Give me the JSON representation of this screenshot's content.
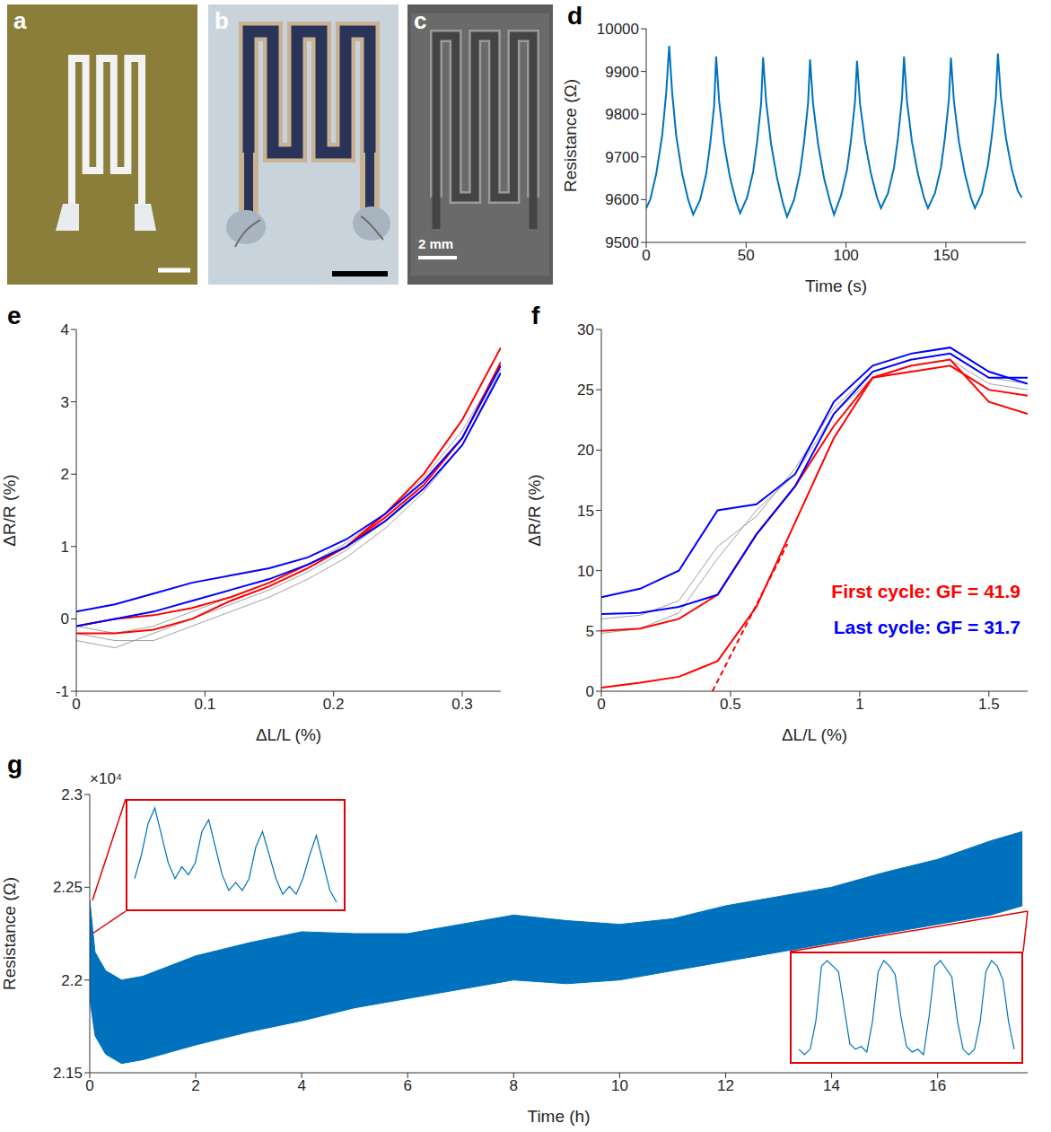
{
  "images": [
    {
      "panel": "a"
    },
    {
      "panel": "b"
    },
    {
      "panel": "c",
      "scale_bar": "2 mm"
    }
  ],
  "chart_data": [
    {
      "panel": "d",
      "type": "line",
      "x_label": "Time (s)",
      "y_label": "Resistance (Ω)",
      "xlim": [
        0,
        190
      ],
      "xticks": [
        0,
        50,
        100,
        150
      ],
      "ylim": [
        9500,
        10000
      ],
      "yticks": [
        9500,
        9600,
        9700,
        9800,
        9900,
        10000
      ],
      "series": [
        {
          "color": "#0072bd",
          "x": [
            0,
            2,
            5,
            8,
            10,
            11.5,
            13,
            15,
            18,
            21,
            23.5,
            27,
            30,
            32,
            34,
            35,
            36.5,
            39,
            42,
            45,
            47,
            50.5,
            53.5,
            55.5,
            57.5,
            58.5,
            60,
            62.5,
            65.5,
            68.5,
            70.5,
            74,
            77,
            79,
            81,
            82,
            83.5,
            86,
            89,
            92,
            94,
            97.5,
            100.5,
            102.5,
            104.5,
            105.5,
            107,
            109.5,
            112.5,
            115.5,
            117.5,
            121,
            124,
            126,
            128,
            129,
            130.5,
            133,
            136,
            139,
            141,
            144.5,
            147.5,
            149.5,
            151.5,
            152.5,
            154,
            156.5,
            159.5,
            162.5,
            164.5,
            168,
            171,
            173,
            175,
            176,
            177.5,
            180,
            183,
            186,
            188
          ],
          "values": [
            9580,
            9600,
            9660,
            9750,
            9850,
            9960,
            9850,
            9750,
            9660,
            9600,
            9565,
            9600,
            9660,
            9730,
            9820,
            9935,
            9830,
            9730,
            9650,
            9595,
            9568,
            9605,
            9665,
            9735,
            9825,
            9933,
            9830,
            9730,
            9650,
            9590,
            9560,
            9600,
            9665,
            9735,
            9825,
            9928,
            9825,
            9730,
            9650,
            9595,
            9565,
            9610,
            9670,
            9740,
            9830,
            9925,
            9825,
            9735,
            9660,
            9605,
            9580,
            9615,
            9675,
            9745,
            9835,
            9935,
            9830,
            9735,
            9660,
            9605,
            9580,
            9615,
            9675,
            9745,
            9835,
            9932,
            9830,
            9735,
            9660,
            9605,
            9580,
            9615,
            9680,
            9750,
            9840,
            9942,
            9840,
            9745,
            9670,
            9620,
            9605
          ]
        }
      ]
    },
    {
      "panel": "e",
      "type": "line",
      "x_label": "ΔL/L (%)",
      "y_label": "ΔR/R (%)",
      "xlim": [
        0,
        0.33
      ],
      "xticks": [
        0,
        0.1,
        0.2,
        0.3
      ],
      "ylim": [
        -1,
        4
      ],
      "yticks": [
        -1,
        0,
        1,
        2,
        3,
        4
      ],
      "series": [
        {
          "color": "#a0a0a0",
          "x": [
            0,
            0.03,
            0.06,
            0.09,
            0.12,
            0.15,
            0.18,
            0.21,
            0.24,
            0.27,
            0.3,
            0.33
          ],
          "values": [
            -0.2,
            -0.3,
            -0.3,
            -0.1,
            0.1,
            0.3,
            0.55,
            0.85,
            1.25,
            1.75,
            2.4,
            3.45
          ]
        },
        {
          "color": "#a0a0a0",
          "x": [
            0,
            0.03,
            0.06,
            0.09,
            0.12,
            0.15,
            0.18,
            0.21,
            0.24,
            0.27,
            0.3,
            0.33
          ],
          "values": [
            -0.3,
            -0.4,
            -0.2,
            0.0,
            0.2,
            0.4,
            0.65,
            0.95,
            1.35,
            1.85,
            2.5,
            3.5
          ]
        },
        {
          "color": "#a0a0a0",
          "x": [
            0,
            0.03,
            0.06,
            0.09,
            0.12,
            0.15,
            0.18,
            0.21,
            0.24,
            0.27,
            0.3,
            0.33
          ],
          "values": [
            -0.1,
            -0.2,
            -0.1,
            0.1,
            0.3,
            0.5,
            0.75,
            1.05,
            1.45,
            1.95,
            2.6,
            3.5
          ]
        },
        {
          "color": "#ff0000",
          "x": [
            0,
            0.03,
            0.06,
            0.09,
            0.12,
            0.15,
            0.18,
            0.21,
            0.24,
            0.27,
            0.3,
            0.33
          ],
          "values": [
            -0.1,
            0.0,
            0.05,
            0.15,
            0.3,
            0.5,
            0.75,
            1.0,
            1.45,
            2.0,
            2.75,
            3.75
          ]
        },
        {
          "color": "#ff0000",
          "x": [
            0,
            0.03,
            0.06,
            0.09,
            0.12,
            0.15,
            0.18,
            0.21,
            0.24,
            0.27,
            0.3,
            0.33
          ],
          "values": [
            -0.2,
            -0.2,
            -0.15,
            0.0,
            0.25,
            0.45,
            0.7,
            1.0,
            1.4,
            1.85,
            2.5,
            3.55
          ]
        },
        {
          "color": "#0000ff",
          "x": [
            0,
            0.03,
            0.06,
            0.09,
            0.12,
            0.15,
            0.18,
            0.21,
            0.24,
            0.27,
            0.3,
            0.33
          ],
          "values": [
            0.1,
            0.2,
            0.35,
            0.5,
            0.6,
            0.7,
            0.85,
            1.1,
            1.45,
            1.9,
            2.5,
            3.5
          ]
        },
        {
          "color": "#0000ff",
          "x": [
            0,
            0.03,
            0.06,
            0.09,
            0.12,
            0.15,
            0.18,
            0.21,
            0.24,
            0.27,
            0.3,
            0.33
          ],
          "values": [
            -0.1,
            0.0,
            0.1,
            0.25,
            0.4,
            0.55,
            0.75,
            1.0,
            1.35,
            1.8,
            2.4,
            3.4
          ]
        }
      ]
    },
    {
      "panel": "f",
      "type": "line",
      "x_label": "ΔL/L (%)",
      "y_label": "ΔR/R (%)",
      "xlim": [
        0,
        1.65
      ],
      "xticks": [
        0,
        0.5,
        1,
        1.5
      ],
      "ylim": [
        0,
        30
      ],
      "yticks": [
        0,
        5,
        10,
        15,
        20,
        25,
        30
      ],
      "annotations": [
        {
          "text": "First cycle: GF = 41.9",
          "color": "#ff0000"
        },
        {
          "text": "Last cycle: GF = 31.7",
          "color": "#0000ff"
        }
      ],
      "series": [
        {
          "color": "#a0a0a0",
          "x": [
            0,
            0.15,
            0.3,
            0.45,
            0.6,
            0.75,
            0.9,
            1.05,
            1.2,
            1.35,
            1.5,
            1.65
          ],
          "values": [
            4.8,
            5.2,
            6.5,
            11,
            15,
            18,
            23,
            26,
            27,
            27.5,
            25.5,
            25
          ]
        },
        {
          "color": "#a0a0a0",
          "x": [
            0,
            0.15,
            0.3,
            0.45,
            0.6,
            0.75,
            0.9,
            1.05,
            1.2,
            1.35,
            1.5,
            1.65
          ],
          "values": [
            6,
            6.3,
            7.5,
            12,
            14.5,
            18.5,
            23.5,
            26.5,
            27.5,
            28,
            26,
            25.5
          ]
        },
        {
          "color": "#ff0000",
          "x": [
            0,
            0.15,
            0.3,
            0.45,
            0.6,
            0.75,
            0.9,
            1.05,
            1.2,
            1.35,
            1.5,
            1.65
          ],
          "values": [
            0.3,
            0.7,
            1.2,
            2.5,
            7,
            14,
            21,
            26,
            26.5,
            27,
            25,
            24.5
          ]
        },
        {
          "color": "#ff0000",
          "x": [
            0,
            0.15,
            0.3,
            0.45,
            0.6,
            0.75,
            0.9,
            1.05,
            1.2,
            1.35,
            1.5,
            1.65
          ],
          "values": [
            5,
            5.2,
            6,
            8,
            13,
            17,
            22,
            26,
            27,
            27.5,
            24,
            23
          ]
        },
        {
          "color": "#0000ff",
          "x": [
            0,
            0.15,
            0.3,
            0.45,
            0.6,
            0.75,
            0.9,
            1.05,
            1.2,
            1.35,
            1.5,
            1.65
          ],
          "values": [
            7.8,
            8.5,
            10,
            15,
            15.5,
            18,
            24,
            27,
            28,
            28.5,
            26.5,
            25.5
          ]
        },
        {
          "color": "#0000ff",
          "x": [
            0,
            0.15,
            0.3,
            0.45,
            0.6,
            0.75,
            0.9,
            1.05,
            1.2,
            1.35,
            1.5,
            1.65
          ],
          "values": [
            6.4,
            6.5,
            7,
            8,
            13,
            17,
            23,
            26.5,
            27.5,
            28,
            26,
            26
          ]
        },
        {
          "color": "#ff0000",
          "line_style": "dashed",
          "x": [
            0.43,
            0.72
          ],
          "values": [
            0,
            12.2
          ]
        }
      ]
    },
    {
      "panel": "g",
      "type": "area",
      "x_label": "Time (h)",
      "y_label": "Resistance (Ω)",
      "color": "#0072bd",
      "xlim": [
        0,
        17.7
      ],
      "xticks": [
        0,
        2,
        4,
        6,
        8,
        10,
        12,
        14,
        16
      ],
      "ylim": [
        2.15,
        2.3
      ],
      "yticks": [
        2.15,
        2.2,
        2.25,
        2.3
      ],
      "annotations": [
        {
          "text": "×10⁴"
        }
      ],
      "x": [
        0,
        0.1,
        0.3,
        0.6,
        1,
        2,
        3,
        4,
        5,
        6,
        7,
        8,
        9,
        10,
        11,
        12,
        13,
        14,
        15,
        16,
        17,
        17.6
      ],
      "low": [
        2.19,
        2.17,
        2.16,
        2.155,
        2.157,
        2.165,
        2.172,
        2.178,
        2.185,
        2.19,
        2.195,
        2.2,
        2.198,
        2.2,
        2.205,
        2.21,
        2.215,
        2.22,
        2.225,
        2.23,
        2.235,
        2.24
      ],
      "high": [
        2.243,
        2.215,
        2.205,
        2.2,
        2.202,
        2.213,
        2.22,
        2.226,
        2.225,
        2.225,
        2.23,
        2.235,
        2.232,
        2.23,
        2.233,
        2.24,
        2.245,
        2.25,
        2.258,
        2.265,
        2.275,
        2.28
      ],
      "insets": [
        {
          "type": "line",
          "color": "#0072bd",
          "tick_labels": false,
          "values": [
            2.232,
            2.238,
            2.246,
            2.25,
            2.243,
            2.236,
            2.232,
            2.235,
            2.233,
            2.236,
            2.244,
            2.247,
            2.24,
            2.233,
            2.229,
            2.231,
            2.229,
            2.232,
            2.24,
            2.244,
            2.238,
            2.232,
            2.228,
            2.23,
            2.228,
            2.232,
            2.238,
            2.243,
            2.236,
            2.229,
            2.226
          ]
        },
        {
          "type": "line",
          "color": "#0072bd",
          "tick_labels": false,
          "values": [
            2.24,
            2.238,
            2.24,
            2.25,
            2.27,
            2.272,
            2.27,
            2.268,
            2.255,
            2.242,
            2.24,
            2.241,
            2.239,
            2.25,
            2.268,
            2.272,
            2.27,
            2.267,
            2.252,
            2.241,
            2.239,
            2.24,
            2.238,
            2.252,
            2.27,
            2.272,
            2.269,
            2.266,
            2.25,
            2.24,
            2.238,
            2.24,
            2.25,
            2.268,
            2.272,
            2.27,
            2.265,
            2.25,
            2.24
          ]
        }
      ]
    }
  ]
}
